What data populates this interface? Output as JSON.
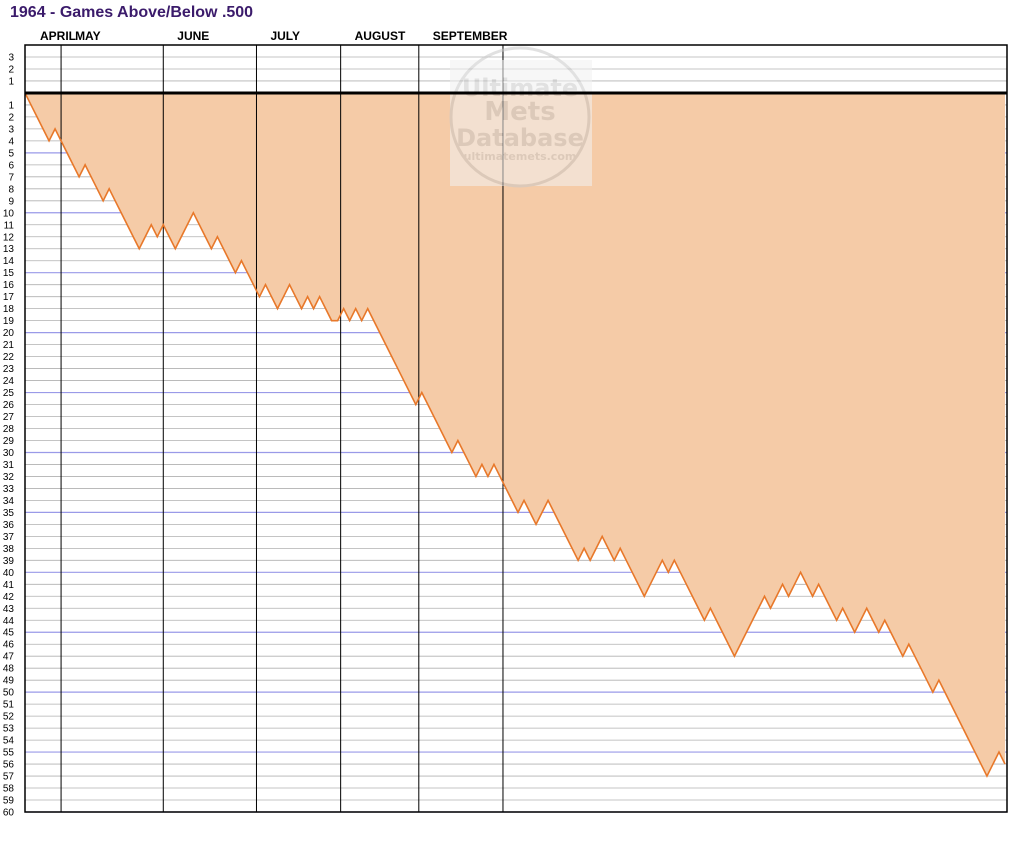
{
  "chart_data": {
    "type": "area",
    "title": "1964 - Games Above/Below .500",
    "xlabel": "",
    "ylabel": "",
    "months": [
      "APRIL",
      "MAY",
      "JUNE",
      "JULY",
      "AUGUST",
      "SEPTEMBER"
    ],
    "month_game_index": [
      0,
      6,
      23,
      38.5,
      52.5,
      65.5,
      79.5
    ],
    "ylim": [
      -60,
      4
    ],
    "y_tick_labels_above": [
      "3",
      "2",
      "1"
    ],
    "y_tick_labels_below": [
      "1",
      "2",
      "3",
      "4",
      "5",
      "6",
      "7",
      "8",
      "9",
      "10",
      "11",
      "12",
      "13",
      "14",
      "15",
      "16",
      "17",
      "18",
      "19",
      "20",
      "21",
      "22",
      "23",
      "24",
      "25",
      "26",
      "27",
      "28",
      "29",
      "30",
      "31",
      "32",
      "33",
      "34",
      "35",
      "36",
      "37",
      "38",
      "39",
      "40",
      "41",
      "42",
      "43",
      "44",
      "45",
      "46",
      "47",
      "48",
      "49",
      "50",
      "51",
      "52",
      "53",
      "54",
      "55",
      "56",
      "57",
      "58",
      "59",
      "60"
    ],
    "grid": true,
    "colors": {
      "line": "#e8782a",
      "fill": "#f5cba7",
      "grid": "#b0b0b0",
      "grid_major": "#9a9ae8",
      "zero_line": "#000000",
      "title": "#3b1b6b"
    },
    "values": [
      0,
      -1,
      -2,
      -3,
      -4,
      -3,
      -4,
      -5,
      -6,
      -7,
      -6,
      -7,
      -8,
      -9,
      -8,
      -9,
      -10,
      -11,
      -12,
      -13,
      -12,
      -11,
      -12,
      -11,
      -12,
      -13,
      -12,
      -11,
      -10,
      -11,
      -12,
      -13,
      -12,
      -13,
      -14,
      -15,
      -14,
      -15,
      -16,
      -17,
      -16,
      -17,
      -18,
      -17,
      -16,
      -17,
      -18,
      -17,
      -18,
      -17,
      -18,
      -19,
      -19,
      -18,
      -19,
      -18,
      -19,
      -18,
      -19,
      -20,
      -21,
      -22,
      -23,
      -24,
      -25,
      -26,
      -25,
      -26,
      -27,
      -28,
      -29,
      -30,
      -29,
      -30,
      -31,
      -32,
      -31,
      -32,
      -31,
      -32,
      -33,
      -34,
      -35,
      -34,
      -35,
      -36,
      -35,
      -34,
      -35,
      -36,
      -37,
      -38,
      -39,
      -38,
      -39,
      -38,
      -37,
      -38,
      -39,
      -38,
      -39,
      -40,
      -41,
      -42,
      -41,
      -40,
      -39,
      -40,
      -39,
      -40,
      -41,
      -42,
      -43,
      -44,
      -43,
      -44,
      -45,
      -46,
      -47,
      -46,
      -45,
      -44,
      -43,
      -42,
      -43,
      -42,
      -41,
      -42,
      -41,
      -40,
      -41,
      -42,
      -41,
      -42,
      -43,
      -44,
      -43,
      -44,
      -45,
      -44,
      -43,
      -44,
      -45,
      -44,
      -45,
      -46,
      -47,
      -46,
      -47,
      -48,
      -49,
      -50,
      -49,
      -50,
      -51,
      -52,
      -53,
      -54,
      -55,
      -56,
      -57,
      -56,
      -55,
      -56
    ]
  },
  "watermark": {
    "line1": "Ultimate",
    "line2": "Mets",
    "line3": "Database",
    "url": "ultimatemets.com"
  }
}
